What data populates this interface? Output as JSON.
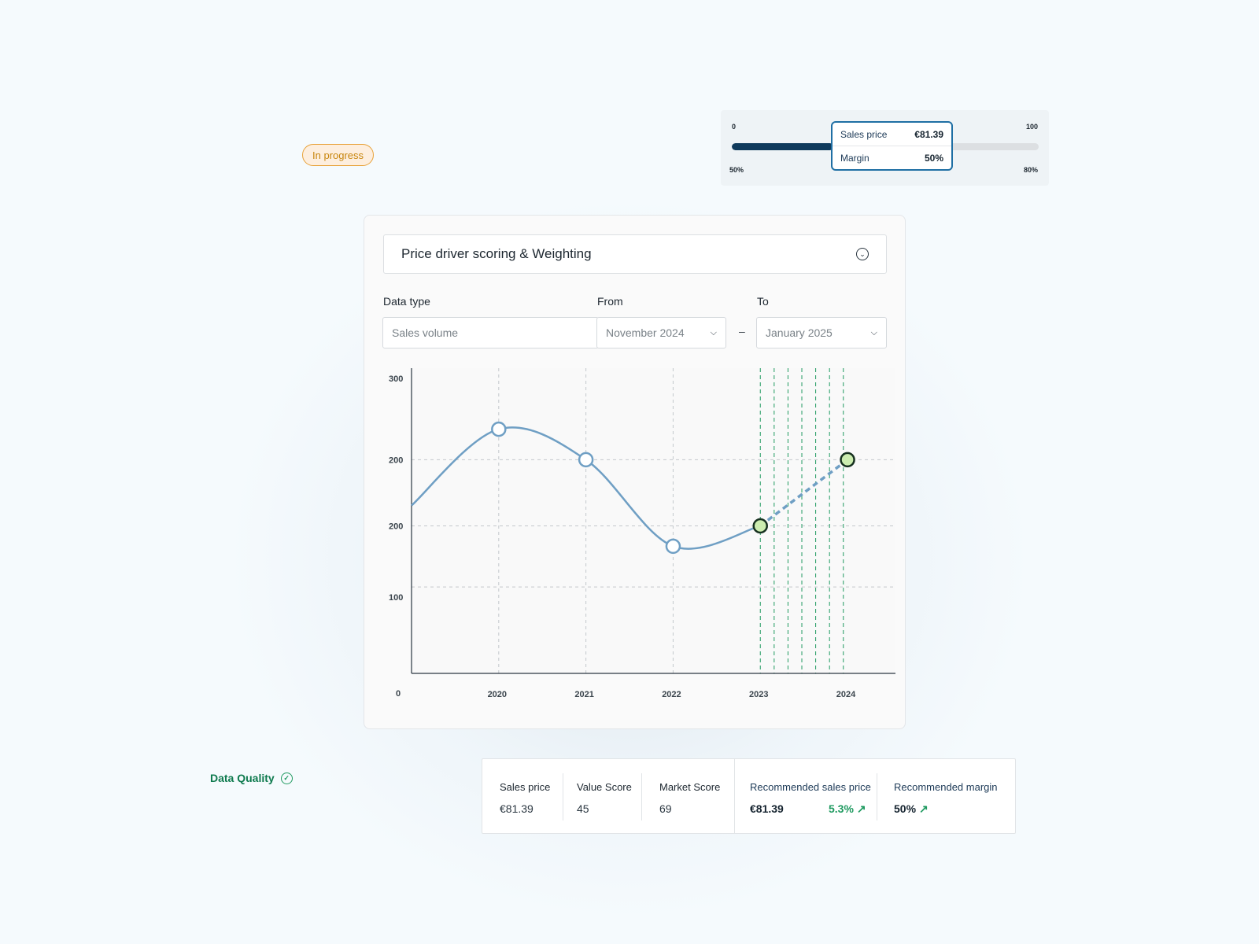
{
  "status_badge": "In progress",
  "slider": {
    "min_label": "0",
    "max_label": "100",
    "low_label": "50%",
    "high_label": "80%",
    "fill_fraction": 0.33,
    "tooltip": {
      "sales_price_label": "Sales price",
      "sales_price_value": "€81.39",
      "margin_label": "Margin",
      "margin_value": "50%"
    }
  },
  "panel": {
    "title": "Price driver scoring & Weighting",
    "data_type_label": "Data type",
    "data_type_value": "Sales volume",
    "from_label": "From",
    "from_value": "November 2024",
    "to_label": "To",
    "to_value": "January 2025",
    "range_separator": "–"
  },
  "chart_data": {
    "type": "line",
    "y_tick_labels": [
      "300",
      "200",
      "200",
      "100",
      "0"
    ],
    "x_tick_labels": [
      "2020",
      "2021",
      "2022",
      "2023",
      "2024"
    ],
    "ylim": [
      0,
      300
    ],
    "series": [
      {
        "style": "solid",
        "color": "#6f9fc4",
        "x": [
          2019.0,
          2020.0,
          2021.0,
          2022.0,
          2023.0
        ],
        "y": [
          165,
          240,
          210,
          125,
          145
        ]
      },
      {
        "style": "dashed",
        "color": "#6f9fc4",
        "x": [
          2023.0,
          2024.0
        ],
        "y": [
          145,
          210
        ]
      }
    ],
    "markers_hollow": [
      [
        2020.0,
        240
      ],
      [
        2021.0,
        210
      ],
      [
        2022.0,
        125
      ]
    ],
    "markers_highlight": [
      [
        2023.0,
        145
      ],
      [
        2024.0,
        210
      ]
    ],
    "highlight_color": "#ccedb0",
    "forecast_gridline_color": "#1f9a60",
    "grid": true
  },
  "data_quality": {
    "label": "Data Quality"
  },
  "stats": {
    "sales_price_label": "Sales price",
    "sales_price_value": "€81.39",
    "value_score_label": "Value Score",
    "value_score_value": "45",
    "market_score_label": "Market Score",
    "market_score_value": "69",
    "rec_price_label": "Recommended sales price",
    "rec_price_value": "€81.39",
    "rec_price_change": "5.3%",
    "rec_margin_label": "Recommended margin",
    "rec_margin_value": "50%"
  }
}
